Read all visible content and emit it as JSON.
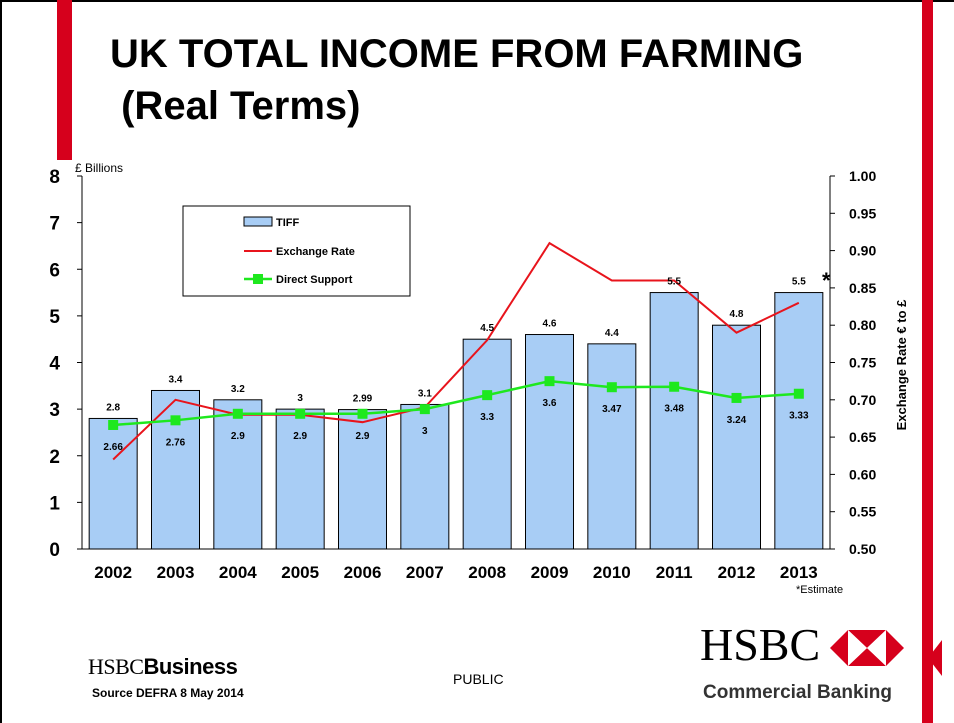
{
  "slide": {
    "title": "UK TOTAL INCOME FROM FARMING\n (Real Terms)",
    "public_label": "PUBLIC",
    "source": "Source  DEFRA 8 May 2014",
    "footnote": "*Estimate",
    "asterisk": "*",
    "logo_left_a": "HSBC",
    "logo_left_b": "Business",
    "logo_right_name": "HSBC",
    "logo_right_sub": "Commercial Banking",
    "colors": {
      "red": "#d6001c",
      "bar_fill": "#a8cdf5",
      "line_red": "#e8141c",
      "line_green": "#1ee81e"
    }
  },
  "chart_data": {
    "type": "bar",
    "categories": [
      "2002",
      "2003",
      "2004",
      "2005",
      "2006",
      "2007",
      "2008",
      "2009",
      "2010",
      "2011",
      "2012",
      "2013"
    ],
    "y_unit_label": "£ Billions",
    "ylim": [
      0,
      8
    ],
    "y_ticks": [
      "0",
      "1",
      "2",
      "3",
      "4",
      "5",
      "6",
      "7",
      "8"
    ],
    "y2label": "Exchange Rate € to £",
    "y2lim": [
      0.5,
      1.0
    ],
    "y2_ticks": [
      "0.50",
      "0.55",
      "0.60",
      "0.65",
      "0.70",
      "0.75",
      "0.80",
      "0.85",
      "0.90",
      "0.95",
      "1.00"
    ],
    "legend_placement": "top-left",
    "series": [
      {
        "name": "TIFF",
        "type": "bar",
        "axis": "left",
        "values": [
          2.8,
          3.4,
          3.2,
          3,
          2.99,
          3.1,
          4.5,
          4.6,
          4.4,
          5.5,
          4.8,
          5.5
        ],
        "labels": [
          "2.8",
          "3.4",
          "3.2",
          "3",
          "2.99",
          "3.1",
          "4.5",
          "4.6",
          "4.4",
          "5.5",
          "4.8",
          "5.5"
        ]
      },
      {
        "name": "Exchange Rate",
        "type": "line",
        "axis": "right",
        "values": [
          0.62,
          0.7,
          0.68,
          0.68,
          0.67,
          0.69,
          0.78,
          0.91,
          0.86,
          0.86,
          0.79,
          0.83
        ]
      },
      {
        "name": "Direct Support",
        "type": "line",
        "axis": "left",
        "marker": "square",
        "values": [
          2.66,
          2.76,
          2.9,
          2.9,
          2.9,
          3,
          3.3,
          3.6,
          3.47,
          3.48,
          3.24,
          3.33
        ],
        "labels": [
          "2.66",
          "2.76",
          "2.9",
          "2.9",
          "2.9",
          "3",
          "3.3",
          "3.6",
          "3.47",
          "3.48",
          "3.24",
          "3.33"
        ]
      }
    ]
  }
}
